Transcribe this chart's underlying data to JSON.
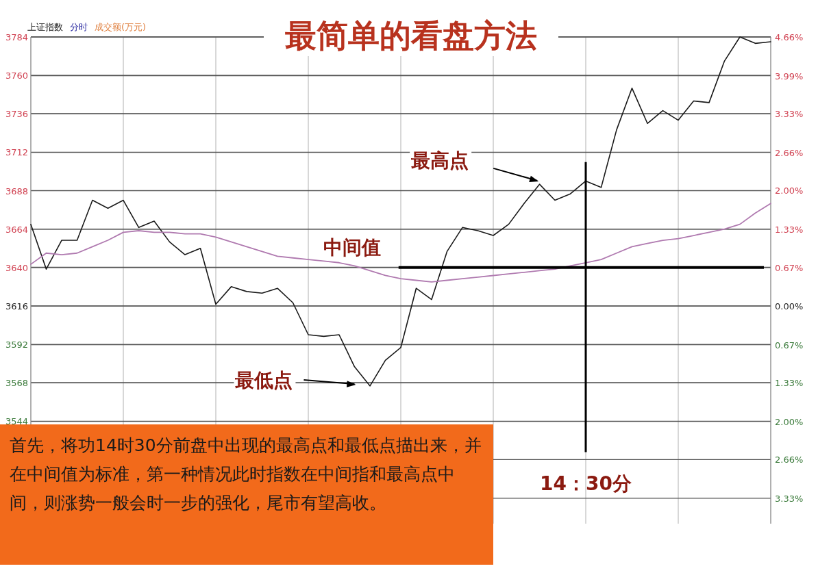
{
  "chart_data": {
    "type": "line",
    "title": "最简单的看盘方法",
    "categories": [
      null,
      null,
      null,
      null,
      null,
      null,
      null,
      null,
      null,
      null,
      null,
      null,
      null,
      null,
      null,
      null,
      null,
      null,
      null,
      null,
      null,
      null,
      null,
      null,
      null,
      null,
      null,
      null,
      null,
      null,
      null,
      null,
      null,
      null,
      null,
      null,
      null,
      null,
      null,
      null,
      null,
      null,
      null,
      null,
      null,
      null,
      null,
      null,
      null
    ],
    "ylim": [
      3480,
      3784
    ],
    "yticks": [
      3544,
      3568,
      3592,
      3616,
      3640,
      3664,
      3688,
      3712,
      3736,
      3760,
      3784
    ],
    "y2lim": [
      -3.77,
      4.66
    ],
    "y2ticks": [
      {
        "value": -3.33,
        "label": "3.33%"
      },
      {
        "value": -2.66,
        "label": "2.66%"
      },
      {
        "value": -2.0,
        "label": "2.00%"
      },
      {
        "value": -1.33,
        "label": "1.33%"
      },
      {
        "value": -0.67,
        "label": "0.67%"
      },
      {
        "value": 0,
        "label": "0.00%"
      },
      {
        "value": 0.67,
        "label": "0.67%"
      },
      {
        "value": 1.33,
        "label": "1.33%"
      },
      {
        "value": 2.0,
        "label": "2.00%"
      },
      {
        "value": 2.66,
        "label": "2.66%"
      },
      {
        "value": 3.33,
        "label": "3.33%"
      },
      {
        "value": 3.99,
        "label": "3.99%"
      },
      {
        "value": 4.66,
        "label": "4.66%"
      }
    ],
    "tick_labels": "y",
    "grid": true,
    "series": [
      {
        "color": "#1a1a1a",
        "values": [
          3667,
          3639,
          3657,
          3657,
          3682,
          3677,
          3682,
          3665,
          3669,
          3656,
          3648,
          3652,
          3617,
          3628,
          3625,
          3624,
          3627,
          3618,
          3598,
          3597,
          3598,
          3578,
          3566,
          3582,
          3590,
          3627,
          3620,
          3650,
          3665,
          3663,
          3660,
          3667,
          3680,
          3692,
          3682,
          3686,
          3694,
          3690,
          3726,
          3752,
          3730,
          3738,
          3732,
          3744,
          3743,
          3769,
          3784,
          3780,
          3781
        ]
      },
      {
        "color": "#b07ab0",
        "values": [
          3642,
          3649,
          3648,
          3649,
          3653,
          3657,
          3662,
          3663,
          3662,
          3662,
          3661,
          3661,
          3659,
          3656,
          3653,
          3650,
          3647,
          3646,
          3645,
          3644,
          3643,
          3641,
          3638,
          3635,
          3633,
          3632,
          3631,
          3632,
          3633,
          3634,
          3635,
          3636,
          3637,
          3638,
          3639,
          3641,
          3643,
          3645,
          3649,
          3653,
          3655,
          3657,
          3658,
          3660,
          3662,
          3664,
          3667,
          3674,
          3680
        ]
      }
    ],
    "ref_lines": [
      {
        "axis": "y",
        "value": 3640,
        "label": "中间值",
        "color": "#000000"
      }
    ],
    "annotations": [
      "最高点",
      "最低点",
      "14：30分",
      "上证指数",
      "分时",
      "成交额(万元)",
      "首先，将功14时30分前盘中出现的最高点和最低点描出来，并在中间值为标准，第一种情况此时指数在中间指和最高点中间，则涨势一般会时一步的强化，尾市有望高收。"
    ]
  }
}
